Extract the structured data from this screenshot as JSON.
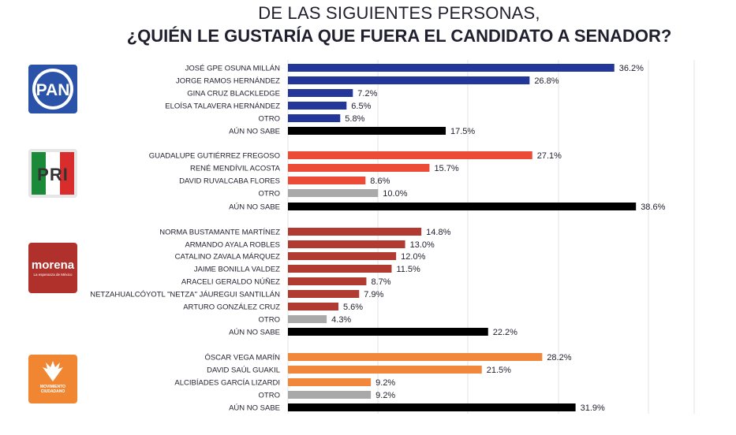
{
  "title": {
    "line1": "DE LAS SIGUIENTES PERSONAS,",
    "line2": "¿QUIÉN LE GUSTARÍA QUE FUERA EL CANDIDATO A SENADOR?"
  },
  "logos": {
    "pan": "PAN",
    "pri": "PRI",
    "morena": "morena",
    "morena_sub": "La esperanza de México",
    "mc_line1": "MOVIMIENTO",
    "mc_line2": "CIUDADANO"
  },
  "colors": {
    "pan": "#23379a",
    "pri": "#ec4b35",
    "morena": "#b13a31",
    "mc": "#f0873a",
    "otro": "#a9a9a9",
    "aun_no_sabe": "#000000"
  },
  "chart_data": {
    "type": "bar",
    "orientation": "horizontal",
    "xlim": [
      0,
      40
    ],
    "grid": true,
    "groups": [
      {
        "party": "PAN",
        "categories": [
          "JOSÉ GPE OSUNA MILLÁN",
          "JORGE RAMOS HERNÁNDEZ",
          "GINA CRUZ BLACKLEDGE",
          "ELOÍSA TALAVERA HERNÁNDEZ",
          "OTRO",
          "AÚN NO SABE"
        ],
        "values": [
          36.2,
          26.8,
          7.2,
          6.5,
          5.8,
          17.5
        ],
        "labels": [
          "36.2%",
          "26.8%",
          "7.2%",
          "6.5%",
          "5.8%",
          "17.5%"
        ],
        "colors": [
          "#23379a",
          "#23379a",
          "#23379a",
          "#23379a",
          "#23379a",
          "#000000"
        ]
      },
      {
        "party": "PRI",
        "categories": [
          "GUADALUPE GUTIÉRREZ FREGOSO",
          "RENÉ MENDÍVIL ACOSTA",
          "DAVID RUVALCABA FLORES",
          "OTRO",
          "AÚN NO SABE"
        ],
        "values": [
          27.1,
          15.7,
          8.6,
          10.0,
          38.6
        ],
        "labels": [
          "27.1%",
          "15.7%",
          "8.6%",
          "10.0%",
          "38.6%"
        ],
        "colors": [
          "#ec4b35",
          "#ec4b35",
          "#ec4b35",
          "#a9a9a9",
          "#000000"
        ]
      },
      {
        "party": "MORENA",
        "categories": [
          "NORMA BUSTAMANTE MARTÍNEZ",
          "ARMANDO AYALA  ROBLES",
          "CATALINO ZAVALA MÁRQUEZ",
          "JAIME BONILLA VALDEZ",
          "ARACELI GERALDO NÚÑEZ",
          "NETZAHUALCÓYOTL \"NETZA\" JÁUREGUI SANTILLÁN",
          "ARTURO GONZÁLEZ CRUZ",
          "OTRO",
          "AÚN NO SABE"
        ],
        "values": [
          14.8,
          13.0,
          12.0,
          11.5,
          8.7,
          7.9,
          5.6,
          4.3,
          22.2
        ],
        "labels": [
          "14.8%",
          "13.0%",
          "12.0%",
          "11.5%",
          "8.7%",
          "7.9%",
          "5.6%",
          "4.3%",
          "22.2%"
        ],
        "colors": [
          "#b13a31",
          "#b13a31",
          "#b13a31",
          "#b13a31",
          "#b13a31",
          "#b13a31",
          "#b13a31",
          "#a9a9a9",
          "#000000"
        ]
      },
      {
        "party": "MOVIMIENTO CIUDADANO",
        "categories": [
          "ÓSCAR VEGA MARÍN",
          "DAVID SAÚL GUAKIL",
          "ALCIBÍADES GARCÍA LIZARDI",
          "OTRO",
          "AÚN NO SABE"
        ],
        "values": [
          28.2,
          21.5,
          9.2,
          9.2,
          31.9
        ],
        "labels": [
          "28.2%",
          "21.5%",
          "9.2%",
          "9.2%",
          "31.9%"
        ],
        "colors": [
          "#f0873a",
          "#f0873a",
          "#f0873a",
          "#a9a9a9",
          "#000000"
        ]
      }
    ]
  }
}
